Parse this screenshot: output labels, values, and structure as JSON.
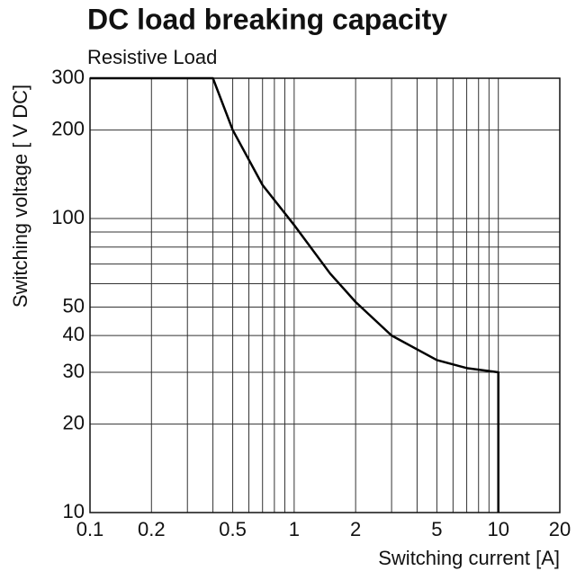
{
  "chart_data": {
    "type": "line",
    "title": "DC load breaking capacity",
    "subtitle": "Resistive Load",
    "x_label": "Switching current [A]",
    "y_label": "Switching voltage [ V DC]",
    "x_scale": "log",
    "y_scale": "log",
    "xlim": [
      0.1,
      20
    ],
    "ylim": [
      10,
      300
    ],
    "xticks": [
      0.1,
      0.2,
      0.5,
      1,
      2,
      5,
      10,
      20
    ],
    "yticks": [
      10,
      20,
      30,
      40,
      50,
      100,
      200,
      300
    ],
    "x_minor_grid": [
      0.3,
      0.4,
      0.6,
      0.7,
      0.8,
      0.9,
      3,
      4,
      6,
      7,
      8,
      9
    ],
    "y_minor_grid": [
      60,
      70,
      80,
      90
    ],
    "grid": true,
    "series": [
      {
        "color": "#000000",
        "x": [
          0.1,
          0.4,
          0.5,
          0.7,
          1,
          1.5,
          2,
          3,
          5,
          7,
          10,
          10
        ],
        "values": [
          300,
          300,
          200,
          130,
          95,
          65,
          52,
          40,
          33,
          31,
          30,
          10
        ]
      }
    ]
  }
}
